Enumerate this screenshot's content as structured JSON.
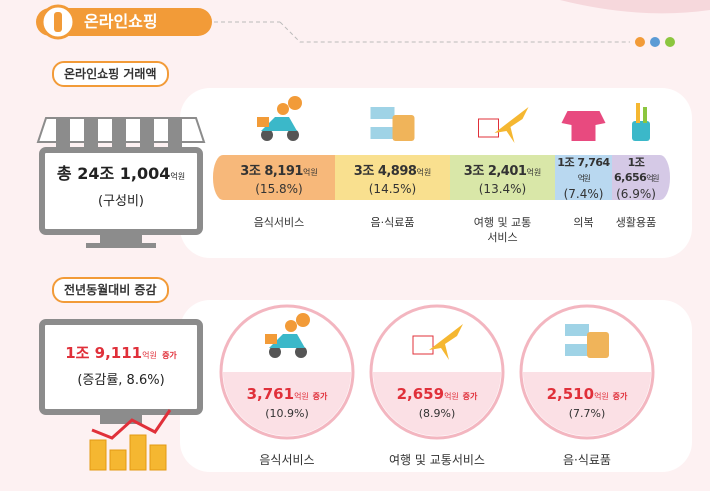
{
  "header": {
    "title": "온라인쇼핑"
  },
  "transactions": {
    "label": "온라인쇼핑 거래액",
    "total": {
      "prefix": "총",
      "amount": "24조 1,004",
      "unit": "억원",
      "note": "(구성비)"
    },
    "segments": [
      {
        "amount": "3조 8,191",
        "unit": "억원",
        "share": "(15.8%)",
        "name": "음식서비스"
      },
      {
        "amount": "3조 4,898",
        "unit": "억원",
        "share": "(14.5%)",
        "name": "음·식료품"
      },
      {
        "amount": "3조 2,401",
        "unit": "억원",
        "share": "(13.4%)",
        "name": "여행 및 교통서비스"
      },
      {
        "amount": "1조 7,764",
        "unit": "억원",
        "share": "(7.4%)",
        "name": "의복"
      },
      {
        "amount": "1조 6,656",
        "unit": "억원",
        "share": "(6.9%)",
        "name": "생활용품"
      }
    ]
  },
  "change": {
    "label": "전년동월대비 증감",
    "total": {
      "amount": "1조 9,111",
      "unit": "억원",
      "suffix": "증가",
      "note": "(증감률, 8.6%)"
    },
    "items": [
      {
        "amount": "3,761",
        "unit": "억원",
        "suffix": "증가",
        "rate": "(10.9%)",
        "name": "음식서비스"
      },
      {
        "amount": "2,659",
        "unit": "억원",
        "suffix": "증가",
        "rate": "(8.9%)",
        "name": "여행 및 교통서비스"
      },
      {
        "amount": "2,510",
        "unit": "억원",
        "suffix": "증가",
        "rate": "(7.7%)",
        "name": "음·식료품"
      }
    ]
  }
}
